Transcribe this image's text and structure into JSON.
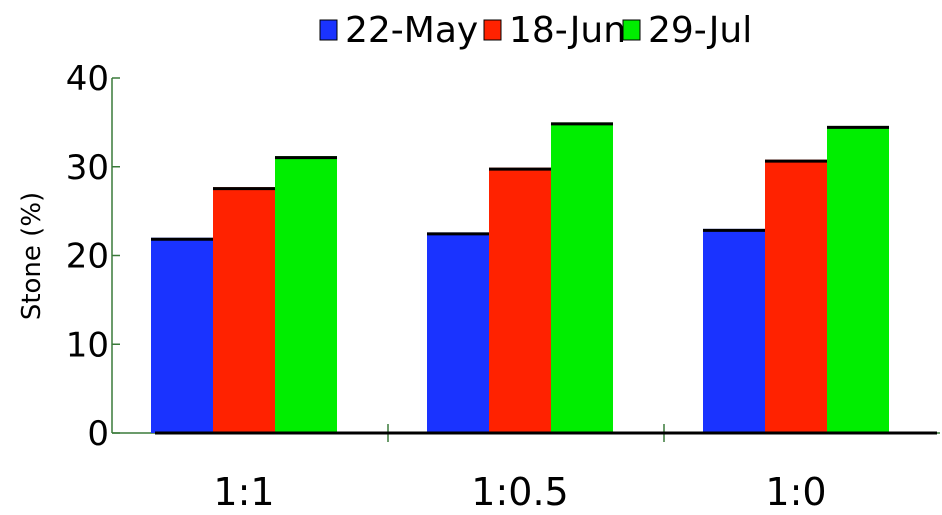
{
  "chart_data": {
    "type": "bar",
    "categories": [
      "1:1",
      "1:0.5",
      "1:0"
    ],
    "series": [
      {
        "name": "22-May",
        "color": "#1a33ff",
        "values": [
          22.0,
          22.6,
          23.0
        ]
      },
      {
        "name": "18-Jun",
        "color": "#ff2200",
        "values": [
          27.7,
          29.9,
          30.8
        ]
      },
      {
        "name": "29-Jul",
        "color": "#00ee00",
        "values": [
          31.2,
          35.0,
          34.6
        ]
      }
    ],
    "ylabel": "Stone (%)",
    "xlabel": "",
    "ylim": [
      0,
      40
    ],
    "yticks": [
      0,
      10,
      20,
      30,
      40
    ],
    "grid": false,
    "legend_position": "top"
  }
}
